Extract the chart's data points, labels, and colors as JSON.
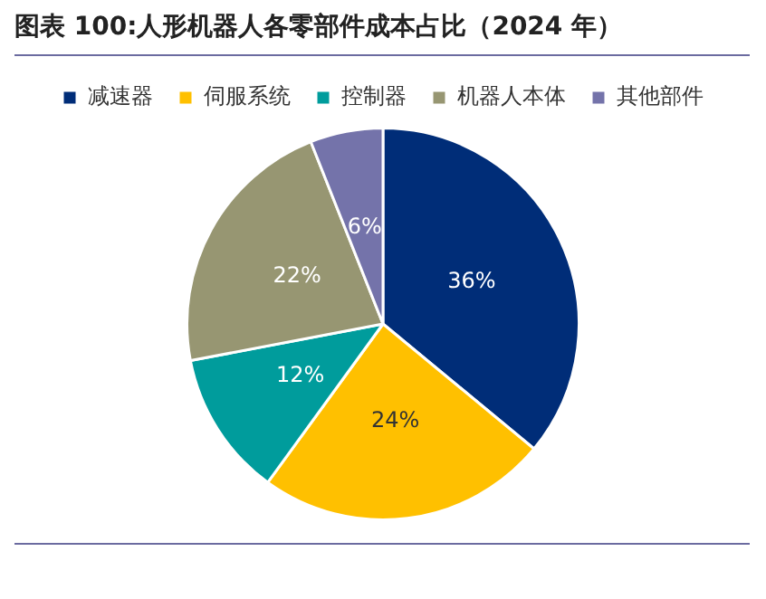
{
  "chart_data": {
    "type": "pie",
    "title": "图表 100:人形机器人各零部件成本占比（2024 年）",
    "categories": [
      "减速器",
      "伺服系统",
      "控制器",
      "机器人本体",
      "其他部件"
    ],
    "values": [
      36,
      24,
      12,
      22,
      6
    ],
    "value_labels": [
      "36%",
      "24%",
      "12%",
      "22%",
      "6%"
    ],
    "colors": [
      "#002d78",
      "#ffc000",
      "#009c9c",
      "#979672",
      "#7473aa"
    ],
    "legend": "top"
  }
}
